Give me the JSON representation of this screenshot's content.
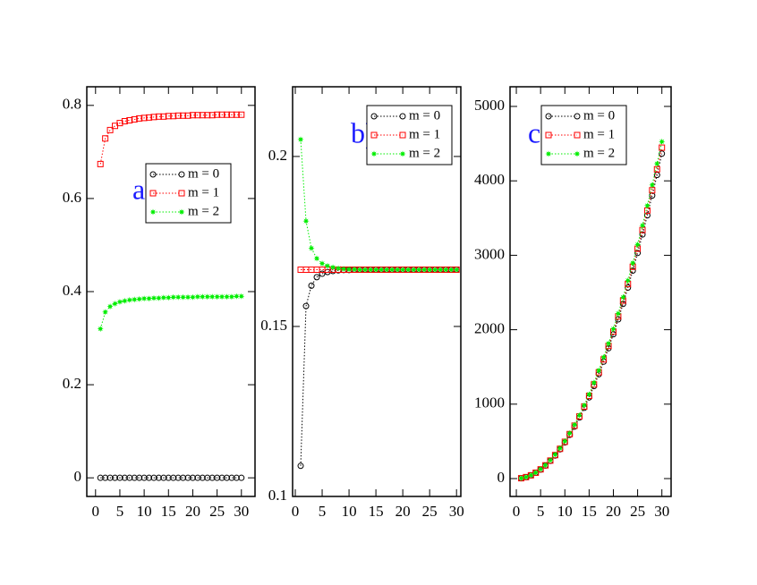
{
  "chart_data": [
    {
      "type": "line",
      "annotation": "a)",
      "legend": "center right",
      "x": [
        1,
        2,
        3,
        4,
        5,
        6,
        7,
        8,
        9,
        10,
        11,
        12,
        13,
        14,
        15,
        16,
        17,
        18,
        19,
        20,
        21,
        22,
        23,
        24,
        25,
        26,
        27,
        28,
        29,
        30
      ],
      "xlim": [
        -1.8,
        32.8
      ],
      "xticks": [
        0,
        5,
        10,
        15,
        20,
        25,
        30
      ],
      "ylim": [
        -0.04,
        0.84
      ],
      "yticks": [
        0,
        0.2,
        0.4,
        0.6,
        0.8
      ],
      "series": [
        {
          "name": "m = 0",
          "color": "#000000",
          "marker": "circle",
          "values": [
            0,
            0,
            0,
            0,
            0,
            0,
            0,
            0,
            0,
            0,
            0,
            0,
            0,
            0,
            0,
            0,
            0,
            0,
            0,
            0,
            0,
            0,
            0,
            0,
            0,
            0,
            0,
            0,
            0,
            0
          ]
        },
        {
          "name": "m = 1",
          "color": "#ff0000",
          "marker": "square",
          "values": [
            0.674,
            0.729,
            0.747,
            0.756,
            0.762,
            0.766,
            0.768,
            0.77,
            0.772,
            0.773,
            0.774,
            0.775,
            0.776,
            0.776,
            0.777,
            0.777,
            0.778,
            0.778,
            0.778,
            0.779,
            0.779,
            0.779,
            0.779,
            0.779,
            0.78,
            0.78,
            0.78,
            0.78,
            0.78,
            0.78
          ]
        },
        {
          "name": "m = 2",
          "color": "#00ee00",
          "marker": "star",
          "values": [
            0.32,
            0.356,
            0.368,
            0.374,
            0.378,
            0.38,
            0.382,
            0.383,
            0.384,
            0.385,
            0.385,
            0.386,
            0.386,
            0.387,
            0.387,
            0.388,
            0.388,
            0.388,
            0.388,
            0.388,
            0.389,
            0.389,
            0.389,
            0.389,
            0.389,
            0.389,
            0.389,
            0.389,
            0.39,
            0.39
          ]
        }
      ]
    },
    {
      "type": "line",
      "annotation": "b)",
      "legend": "upper right",
      "x": [
        1,
        2,
        3,
        4,
        5,
        6,
        7,
        8,
        9,
        10,
        11,
        12,
        13,
        14,
        15,
        16,
        17,
        18,
        19,
        20,
        21,
        22,
        23,
        24,
        25,
        26,
        27,
        28,
        29,
        30
      ],
      "xlim": [
        -0.5,
        30.8
      ],
      "xticks": [
        0,
        5,
        10,
        15,
        20,
        25,
        30
      ],
      "ylim": [
        0.1,
        0.2205
      ],
      "yticks": [
        0.1,
        0.15,
        0.2
      ],
      "series": [
        {
          "name": "m = 0",
          "color": "#000000",
          "marker": "circle",
          "values": [
            0.109,
            0.156,
            0.162,
            0.1645,
            0.1655,
            0.166,
            0.1663,
            0.1665,
            0.1666,
            0.1666,
            0.1667,
            0.1667,
            0.1667,
            0.1667,
            0.1667,
            0.1667,
            0.1667,
            0.1667,
            0.1667,
            0.1667,
            0.1667,
            0.1667,
            0.1667,
            0.1667,
            0.1667,
            0.1667,
            0.1667,
            0.1667,
            0.1667,
            0.1667
          ]
        },
        {
          "name": "m = 1",
          "color": "#ff0000",
          "marker": "square",
          "values": [
            0.1667,
            0.1667,
            0.1667,
            0.1667,
            0.1667,
            0.1667,
            0.1667,
            0.1667,
            0.1667,
            0.1667,
            0.1667,
            0.1667,
            0.1667,
            0.1667,
            0.1667,
            0.1667,
            0.1667,
            0.1667,
            0.1667,
            0.1667,
            0.1667,
            0.1667,
            0.1667,
            0.1667,
            0.1667,
            0.1667,
            0.1667,
            0.1667,
            0.1667,
            0.1667
          ]
        },
        {
          "name": "m = 2",
          "color": "#00ee00",
          "marker": "star",
          "values": [
            0.205,
            0.181,
            0.173,
            0.17,
            0.1685,
            0.1678,
            0.1674,
            0.1671,
            0.1669,
            0.1668,
            0.1668,
            0.1667,
            0.1667,
            0.1667,
            0.1667,
            0.1667,
            0.1667,
            0.1667,
            0.1667,
            0.1667,
            0.1667,
            0.1667,
            0.1667,
            0.1667,
            0.1667,
            0.1667,
            0.1667,
            0.1667,
            0.1667,
            0.1667
          ]
        }
      ]
    },
    {
      "type": "line",
      "annotation": "c)",
      "legend": "upper left",
      "x": [
        1,
        2,
        3,
        4,
        5,
        6,
        7,
        8,
        9,
        10,
        11,
        12,
        13,
        14,
        15,
        16,
        17,
        18,
        19,
        20,
        21,
        22,
        23,
        24,
        25,
        26,
        27,
        28,
        29,
        30
      ],
      "xlim": [
        -1.3,
        31.9
      ],
      "xticks": [
        0,
        5,
        10,
        15,
        20,
        25,
        30
      ],
      "ylim": [
        -240,
        5264
      ],
      "yticks": [
        0,
        1000,
        2000,
        3000,
        4000,
        5000
      ],
      "series": [
        {
          "name": "m = 0",
          "color": "#000000",
          "marker": "circle",
          "values": [
            5,
            19,
            44,
            78,
            121,
            175,
            238,
            310,
            393,
            485,
            587,
            698,
            820,
            951,
            1091,
            1242,
            1402,
            1571,
            1751,
            1940,
            2139,
            2347,
            2566,
            2794,
            3031,
            3279,
            3536,
            3802,
            4079,
            4365
          ]
        },
        {
          "name": "m = 1",
          "color": "#ff0000",
          "marker": "square",
          "values": [
            5,
            20,
            44,
            79,
            124,
            178,
            242,
            316,
            400,
            494,
            598,
            711,
            835,
            968,
            1112,
            1265,
            1428,
            1601,
            1783,
            1976,
            2179,
            2391,
            2613,
            2845,
            3088,
            3339,
            3601,
            3873,
            4155,
            4446
          ]
        },
        {
          "name": "m = 2",
          "color": "#00ee00",
          "marker": "star",
          "values": [
            5,
            20,
            45,
            80,
            126,
            181,
            246,
            322,
            407,
            503,
            609,
            724,
            850,
            986,
            1132,
            1288,
            1454,
            1630,
            1816,
            2012,
            2218,
            2435,
            2661,
            2897,
            3144,
            3400,
            3667,
            3944,
            4230,
            4527
          ]
        }
      ]
    }
  ]
}
